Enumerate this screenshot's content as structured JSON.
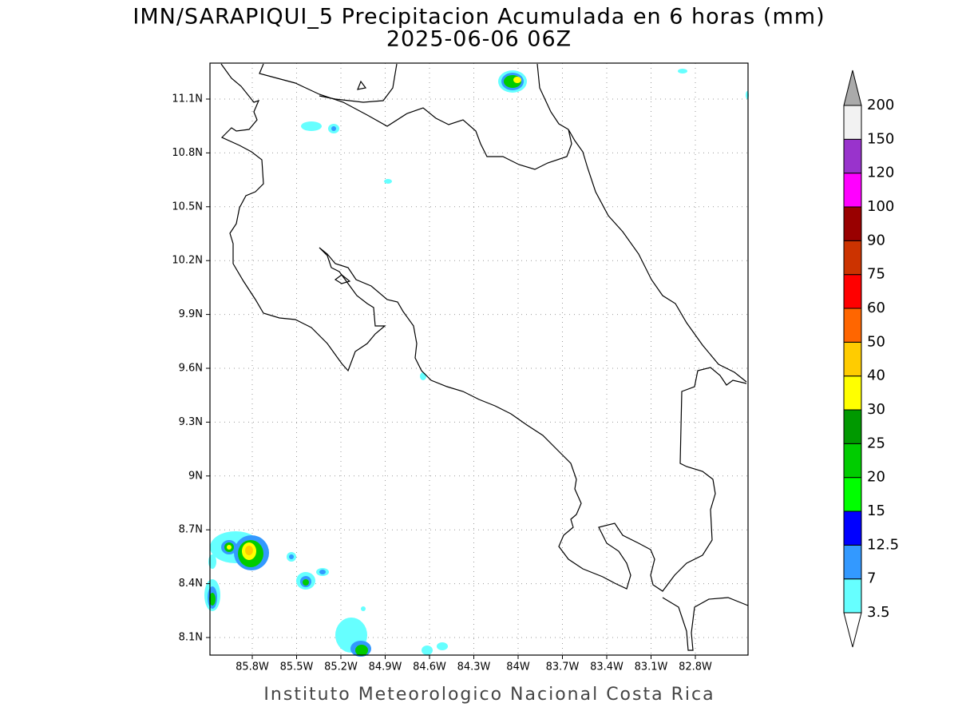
{
  "title": "IMN/SARAPIQUI_5 Precipitacion Acumulada en 6 horas (mm)",
  "subtitle": "2025-06-06 06Z",
  "footer": "Instituto Meteorologico Nacional Costa Rica",
  "map": {
    "lat_labels": [
      "11.1N",
      "10.8N",
      "10.5N",
      "10.2N",
      "9.9N",
      "9.6N",
      "9.3N",
      "9N",
      "8.7N",
      "8.4N",
      "8.1N"
    ],
    "lon_labels": [
      "85.8W",
      "85.5W",
      "85.2W",
      "84.9W",
      "84.6W",
      "84.3W",
      "84W",
      "83.7W",
      "83.4W",
      "83.1W",
      "82.8W"
    ],
    "grid": true
  },
  "legend": {
    "labels": [
      "3.5",
      "7",
      "12.5",
      "15",
      "20",
      "25",
      "30",
      "40",
      "50",
      "60",
      "75",
      "90",
      "100",
      "120",
      "150",
      "200"
    ],
    "colors": [
      "#66ffff",
      "#3399ff",
      "#0000ff",
      "#00ff00",
      "#00cc00",
      "#009900",
      "#ffff00",
      "#ffcc00",
      "#ff6600",
      "#ff0000",
      "#cc3300",
      "#990000",
      "#ff00ff",
      "#9933cc",
      "#f2f2f2"
    ],
    "under_color": "#ffffff",
    "over_color": "#aaaaaa"
  }
}
